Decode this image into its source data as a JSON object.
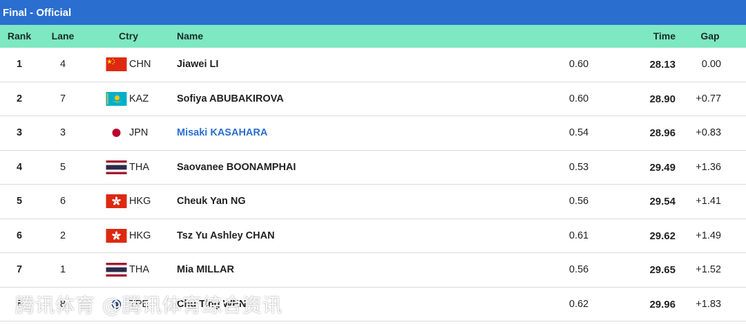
{
  "title": "Final - Official",
  "columns": {
    "rank": "Rank",
    "lane": "Lane",
    "ctry": "Ctry",
    "name": "Name",
    "time": "Time",
    "gap": "Gap"
  },
  "rows": [
    {
      "rank": "1",
      "lane": "4",
      "flag": "china-flag-icon",
      "code": "CHN",
      "name": "Jiawei LI",
      "link": false,
      "reaction": "0.60",
      "time": "28.13",
      "gap": "0.00"
    },
    {
      "rank": "2",
      "lane": "7",
      "flag": "kazakhstan-flag-icon",
      "code": "KAZ",
      "name": "Sofiya ABUBAKIROVA",
      "link": false,
      "reaction": "0.60",
      "time": "28.90",
      "gap": "+0.77"
    },
    {
      "rank": "3",
      "lane": "3",
      "flag": "japan-flag-icon",
      "code": "JPN",
      "name": "Misaki KASAHARA",
      "link": true,
      "reaction": "0.54",
      "time": "28.96",
      "gap": "+0.83"
    },
    {
      "rank": "4",
      "lane": "5",
      "flag": "thailand-flag-icon",
      "code": "THA",
      "name": "Saovanee BOONAMPHAI",
      "link": false,
      "reaction": "0.53",
      "time": "29.49",
      "gap": "+1.36"
    },
    {
      "rank": "5",
      "lane": "6",
      "flag": "hong-kong-flag-icon",
      "code": "HKG",
      "name": "Cheuk Yan NG",
      "link": false,
      "reaction": "0.56",
      "time": "29.54",
      "gap": "+1.41"
    },
    {
      "rank": "6",
      "lane": "2",
      "flag": "hong-kong-flag-icon",
      "code": "HKG",
      "name": "Tsz Yu Ashley CHAN",
      "link": false,
      "reaction": "0.61",
      "time": "29.62",
      "gap": "+1.49"
    },
    {
      "rank": "7",
      "lane": "1",
      "flag": "thailand-flag-icon",
      "code": "THA",
      "name": "Mia MILLAR",
      "link": false,
      "reaction": "0.56",
      "time": "29.65",
      "gap": "+1.52"
    },
    {
      "rank": "8",
      "lane": "8",
      "flag": "chinese-taipei-flag-icon",
      "code": "TPE",
      "name": "Chu Ting WEN",
      "link": false,
      "reaction": "0.62",
      "time": "29.96",
      "gap": "+1.83"
    }
  ],
  "watermark": "腾讯体育 @腾讯体育综合资讯",
  "colors": {
    "title_bar": "#2a6fd0",
    "header_row": "#7de8c2",
    "link": "#2a6fd0"
  }
}
